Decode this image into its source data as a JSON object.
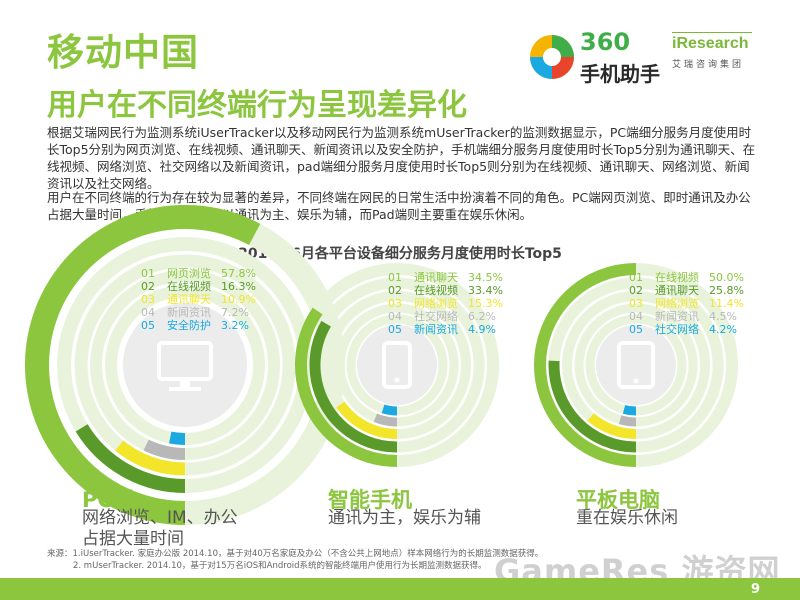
{
  "header": {
    "title": "移动中国",
    "subtitle": "用户在不同终端行为呈现差异化",
    "logo_360_num": "360",
    "logo_360_cn": "手机助手",
    "logo_iresearch": "iResearch",
    "logo_iresearch_cn": "艾瑞咨询集团"
  },
  "body": {
    "paragraph1": "根据艾瑞网民行为监测系统iUserTracker以及移动网民行为监测系统mUserTracker的监测数据显示，PC端细分服务月度使用时长Top5分别为网页浏览、在线视频、通讯聊天、新闻资讯以及安全防护，手机端细分服务月度使用时长Top5分别为通讯聊天、在线视频、网络浏览、社交网络以及新闻资讯，pad端细分服务月度使用时长Top5则分别为在线视频、通讯聊天、网络浏览、新闻资讯以及社交网络。",
    "paragraph2": "用户在不同终端的行为存在较为显著的差异，不同终端在网民的日常生活中扮演着不同的角色。PC端网页浏览、即时通讯及办公占据大量时间，手机端使用行为以通讯为主、娱乐为辅，而Pad端则主要重在娱乐休闲。"
  },
  "colors": {
    "green": "#8cc63f",
    "dark_green": "#5a9a2a",
    "yellow": "#f2e52a",
    "gray": "#b8b8b8",
    "blue": "#1aa9e1",
    "track": "#e9f3dc"
  },
  "chart_data": {
    "title": "2014年6月各平台设备细分服务月度使用时长Top5",
    "type": "radial-bar",
    "panels": [
      {
        "device": "PC",
        "icon": "monitor-icon",
        "items": [
          {
            "rank": "01",
            "label": "网页浏览",
            "value": 57.8,
            "display": "57.8%"
          },
          {
            "rank": "02",
            "label": "在线视频",
            "value": 16.3,
            "display": "16.3%"
          },
          {
            "rank": "03",
            "label": "通讯聊天",
            "value": 10.9,
            "display": "10.9%"
          },
          {
            "rank": "04",
            "label": "新闻资讯",
            "value": 7.2,
            "display": "7.2%"
          },
          {
            "rank": "05",
            "label": "安全防护",
            "value": 3.2,
            "display": "3.2%"
          }
        ],
        "caption_head": "PC端",
        "caption_lines": [
          "网络浏览、IM、办公",
          "占据大量时间"
        ]
      },
      {
        "device": "Phone",
        "icon": "phone-icon",
        "items": [
          {
            "rank": "01",
            "label": "通讯聊天",
            "value": 34.5,
            "display": "34.5%"
          },
          {
            "rank": "02",
            "label": "在线视频",
            "value": 33.4,
            "display": "33.4%"
          },
          {
            "rank": "03",
            "label": "网络浏览",
            "value": 15.3,
            "display": "15.3%"
          },
          {
            "rank": "04",
            "label": "社交网络",
            "value": 6.2,
            "display": "6.2%"
          },
          {
            "rank": "05",
            "label": "新闻资讯",
            "value": 4.9,
            "display": "4.9%"
          }
        ],
        "caption_head": "智能手机",
        "caption_lines": [
          "通讯为主，娱乐为辅"
        ]
      },
      {
        "device": "Tablet",
        "icon": "tablet-icon",
        "items": [
          {
            "rank": "01",
            "label": "在线视频",
            "value": 50.0,
            "display": "50.0%"
          },
          {
            "rank": "02",
            "label": "通讯聊天",
            "value": 25.8,
            "display": "25.8%"
          },
          {
            "rank": "03",
            "label": "网络浏览",
            "value": 11.4,
            "display": "11.4%"
          },
          {
            "rank": "04",
            "label": "新闻资讯",
            "value": 4.5,
            "display": "4.5%"
          },
          {
            "rank": "05",
            "label": "社交网络",
            "value": 4.2,
            "display": "4.2%"
          }
        ],
        "caption_head": "平板电脑",
        "caption_lines": [
          "重在娱乐休闲"
        ]
      }
    ]
  },
  "source": {
    "line1": "来源：1.iUserTracker. 家庭办公版 2014.10，基于对40万名家庭及办公（不含公共上网地点）样本网络行为的长期监测数据获得。",
    "line2": "2. mUserTracker. 2014.10，基于对15万名iOS和Android系统的智能终端用户使用行为长期监测数据获得。"
  },
  "watermark": "GameRes 游资网",
  "page_number": "9"
}
